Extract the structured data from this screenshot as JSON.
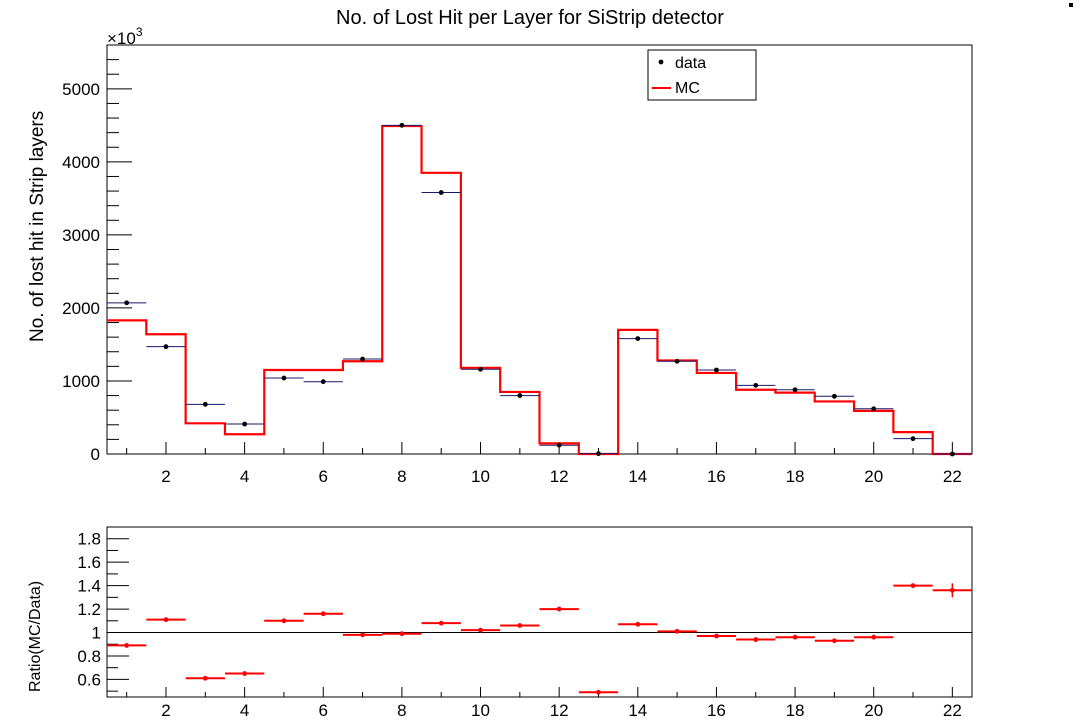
{
  "chart_data": [
    {
      "type": "line",
      "title": "No. of Lost Hit per Layer for SiStrip detector",
      "xlabel": "",
      "ylabel": "No. of lost hit in Strip layers",
      "y_multiplier": "×10",
      "y_multiplier_exp": "3",
      "xlim": [
        0.5,
        22.5
      ],
      "ylim": [
        0,
        5600
      ],
      "x_ticks": [
        "2",
        "4",
        "6",
        "8",
        "10",
        "12",
        "14",
        "16",
        "18",
        "20",
        "22"
      ],
      "y_ticks": [
        "0",
        "1000",
        "2000",
        "3000",
        "4000",
        "5000"
      ],
      "legend_position": "top-right",
      "legend": [
        "data",
        "MC"
      ],
      "x": [
        1,
        2,
        3,
        4,
        5,
        6,
        7,
        8,
        9,
        10,
        11,
        12,
        13,
        14,
        15,
        16,
        17,
        18,
        19,
        20,
        21,
        22
      ],
      "series": [
        {
          "name": "data",
          "style": "points",
          "color": "#000000",
          "values": [
            2070,
            1470,
            680,
            410,
            1040,
            990,
            1300,
            4500,
            3580,
            1160,
            800,
            120,
            5,
            1580,
            1270,
            1150,
            940,
            880,
            790,
            620,
            210,
            0
          ]
        },
        {
          "name": "MC",
          "style": "histogram",
          "color": "#ff0000",
          "values": [
            1830,
            1640,
            420,
            270,
            1150,
            1150,
            1270,
            4490,
            3850,
            1180,
            850,
            145,
            0,
            1700,
            1280,
            1110,
            880,
            840,
            720,
            590,
            300,
            0
          ]
        }
      ]
    },
    {
      "type": "scatter",
      "xlabel": "",
      "ylabel": "Ratio(MC/Data)",
      "xlim": [
        0.5,
        22.5
      ],
      "ylim": [
        0.45,
        1.9
      ],
      "x_ticks": [
        "2",
        "4",
        "6",
        "8",
        "10",
        "12",
        "14",
        "16",
        "18",
        "20",
        "22"
      ],
      "y_ticks": [
        "0.6",
        "0.8",
        "1",
        "1.2",
        "1.4",
        "1.6",
        "1.8"
      ],
      "reference_line": 1,
      "series": [
        {
          "name": "",
          "color": "#ff0000",
          "x": [
            1,
            2,
            3,
            4,
            5,
            6,
            7,
            8,
            9,
            10,
            11,
            12,
            13,
            14,
            15,
            16,
            17,
            18,
            19,
            20,
            21,
            22
          ],
          "values": [
            0.89,
            1.11,
            0.61,
            0.65,
            1.1,
            1.16,
            0.98,
            0.99,
            1.08,
            1.02,
            1.06,
            1.2,
            0.49,
            1.07,
            1.01,
            0.97,
            0.94,
            0.96,
            0.93,
            0.96,
            1.4,
            1.36
          ],
          "errors": [
            0.01,
            0.01,
            0.01,
            0.01,
            0.01,
            0.01,
            0.01,
            0.01,
            0.01,
            0.01,
            0.01,
            0.01,
            0.02,
            0.01,
            0.01,
            0.01,
            0.01,
            0.01,
            0.01,
            0.01,
            0.01,
            0.06
          ]
        }
      ]
    }
  ]
}
